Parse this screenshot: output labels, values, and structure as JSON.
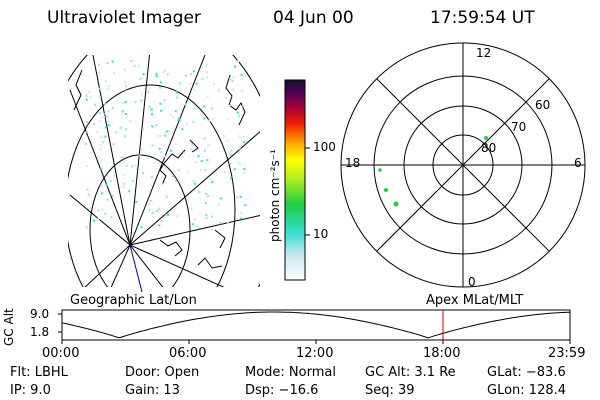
{
  "header": {
    "instrument": "Ultraviolet Imager",
    "date": "04 Jun 00",
    "time": "17:59:54 UT"
  },
  "colorbar": {
    "unit_label": "photon cm⁻²s⁻¹",
    "ticks": [
      "100",
      "10"
    ]
  },
  "polar_plot": {
    "mlt_labels": {
      "top": "12",
      "left": "18",
      "right": "6",
      "bottom": "0"
    },
    "lat_labels": [
      "60",
      "70",
      "80"
    ]
  },
  "panel_titles": {
    "left": "Geographic Lat/Lon",
    "right": "Apex MLat/MLT"
  },
  "altitude_plot": {
    "axis_label": "GC Alt",
    "y_ticks": [
      "9.0",
      "1.8"
    ],
    "x_ticks": [
      "00:00",
      "06:00",
      "12:00",
      "18:00",
      "23:59"
    ],
    "current_time_hours": 18.0
  },
  "info": {
    "row1": {
      "filter": "Flt: LBHL",
      "door": "Door: Open",
      "mode": "Mode: Normal",
      "gc_alt": "GC Alt: 3.1 Re",
      "glat": "GLat: −83.6"
    },
    "row2": {
      "ip": "IP:  9.0",
      "gain": "Gain: 13",
      "dsp": "Dsp:  −16.6",
      "seq": "Seq: 39",
      "glon": "GLon: 128.4"
    }
  },
  "colors": {
    "auroral_spots": "#33ddcc",
    "polar_spots": "#22cc44",
    "time_marker": "#cc0000",
    "meridian": "#0000aa"
  }
}
